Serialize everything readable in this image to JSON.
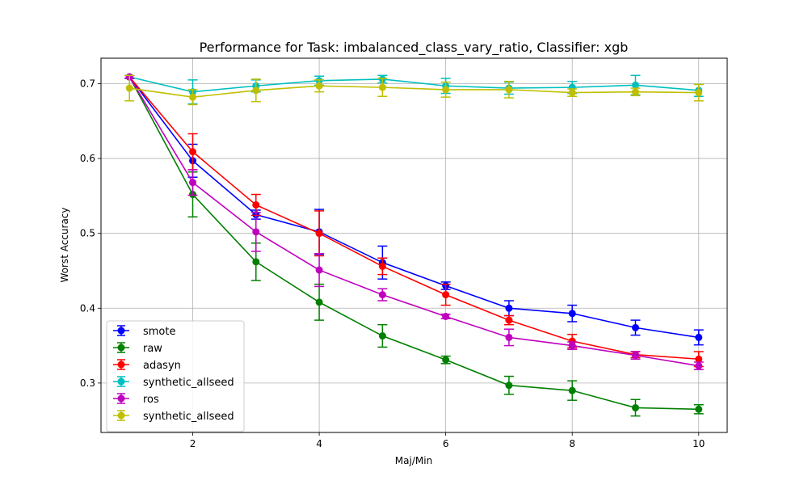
{
  "chart_data": {
    "type": "line",
    "title": "Performance for Task: imbalanced_class_vary_ratio, Classifier: xgb",
    "xlabel": "Maj/Min",
    "ylabel": "Worst Accuracy",
    "x": [
      1,
      2,
      3,
      4,
      5,
      6,
      7,
      8,
      9,
      10
    ],
    "xlim": [
      0.55,
      10.45
    ],
    "ylim": [
      0.234,
      0.734
    ],
    "xticks": [
      2,
      4,
      6,
      8,
      10
    ],
    "yticks": [
      0.3,
      0.4,
      0.5,
      0.6,
      0.7
    ],
    "xtick_labels": [
      "2",
      "4",
      "6",
      "8",
      "10"
    ],
    "ytick_labels": [
      "0.3",
      "0.4",
      "0.5",
      "0.6",
      "0.7"
    ],
    "grid": true,
    "legend_position": "lower-left",
    "series": [
      {
        "name": "smote",
        "color": "#0000ff",
        "values": [
          0.709,
          0.597,
          0.525,
          0.502,
          0.461,
          0.43,
          0.4,
          0.393,
          0.374,
          0.361
        ],
        "errors": [
          0.002,
          0.022,
          0.006,
          0.03,
          0.022,
          0.005,
          0.01,
          0.011,
          0.01,
          0.01
        ]
      },
      {
        "name": "raw",
        "color": "#008000",
        "values": [
          0.709,
          0.552,
          0.462,
          0.408,
          0.363,
          0.331,
          0.297,
          0.29,
          0.267,
          0.265
        ],
        "errors": [
          0.002,
          0.03,
          0.025,
          0.024,
          0.015,
          0.005,
          0.012,
          0.013,
          0.011,
          0.006
        ]
      },
      {
        "name": "adasyn",
        "color": "#ff0000",
        "values": [
          0.709,
          0.609,
          0.538,
          0.5,
          0.456,
          0.418,
          0.384,
          0.356,
          0.338,
          0.332
        ],
        "errors": [
          0.002,
          0.024,
          0.014,
          0.03,
          0.011,
          0.014,
          0.006,
          0.009,
          0.004,
          0.01
        ]
      },
      {
        "name": "synthetic_allseed",
        "color": "#00bfbf",
        "values": [
          0.709,
          0.689,
          0.697,
          0.704,
          0.706,
          0.697,
          0.694,
          0.695,
          0.698,
          0.691
        ],
        "errors": [
          0.002,
          0.016,
          0.008,
          0.006,
          0.005,
          0.01,
          0.008,
          0.008,
          0.013,
          0.008
        ]
      },
      {
        "name": "ros",
        "color": "#bf00bf",
        "values": [
          0.709,
          0.568,
          0.502,
          0.451,
          0.418,
          0.389,
          0.361,
          0.35,
          0.337,
          0.323
        ],
        "errors": [
          0.002,
          0.017,
          0.026,
          0.022,
          0.008,
          0.003,
          0.011,
          0.005,
          0.005,
          0.005
        ]
      },
      {
        "name": "synthetic_allseed",
        "color": "#bfbf00",
        "values": [
          0.694,
          0.682,
          0.691,
          0.697,
          0.695,
          0.692,
          0.692,
          0.688,
          0.689,
          0.688
        ],
        "errors": [
          0.017,
          0.01,
          0.015,
          0.008,
          0.012,
          0.01,
          0.011,
          0.005,
          0.005,
          0.011
        ]
      }
    ]
  }
}
